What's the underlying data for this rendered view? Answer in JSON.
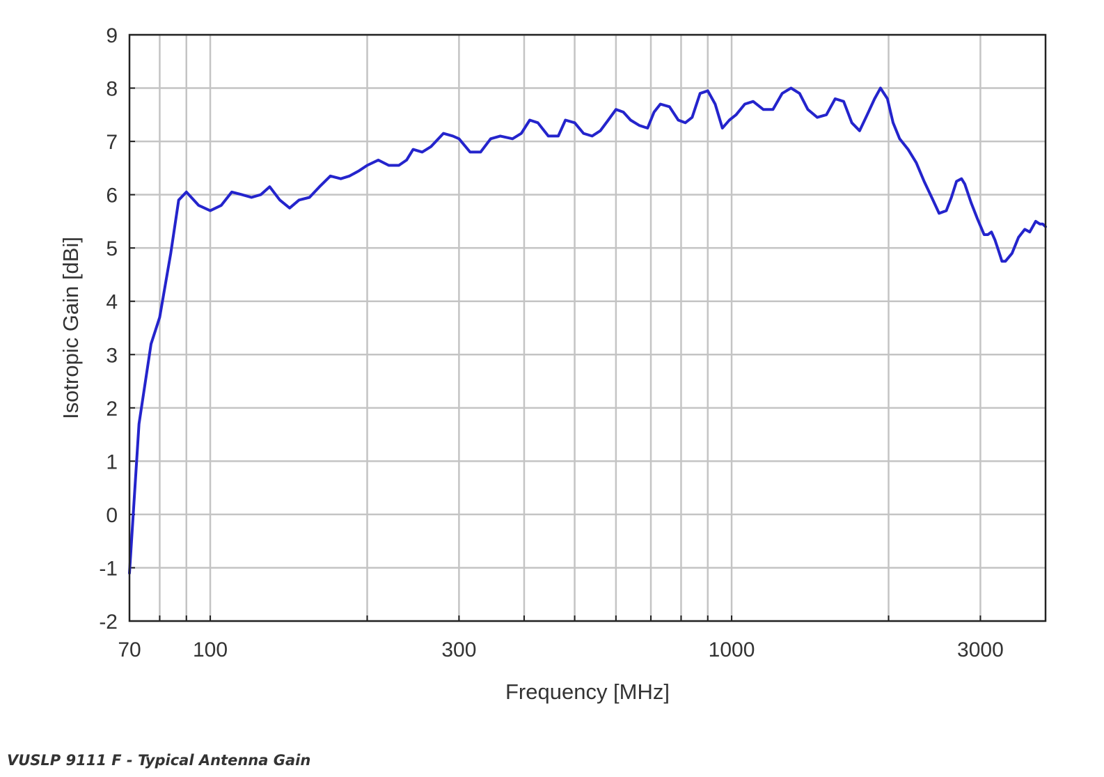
{
  "chart_data": {
    "type": "line",
    "xlabel": "Frequency [MHz]",
    "ylabel": "Isotropic Gain [dBi]",
    "x_scale": "log",
    "xlim": [
      70,
      4000
    ],
    "ylim": [
      -2,
      9
    ],
    "x_ticks": [
      {
        "value": 70,
        "label": "70"
      },
      {
        "value": 100,
        "label": "100"
      },
      {
        "value": 300,
        "label": "300"
      },
      {
        "value": 1000,
        "label": "1000"
      },
      {
        "value": 3000,
        "label": "3000"
      }
    ],
    "y_ticks": [
      {
        "value": -2,
        "label": "-2"
      },
      {
        "value": -1,
        "label": "-1"
      },
      {
        "value": 0,
        "label": "0"
      },
      {
        "value": 1,
        "label": "1"
      },
      {
        "value": 2,
        "label": "2"
      },
      {
        "value": 3,
        "label": "3"
      },
      {
        "value": 4,
        "label": "4"
      },
      {
        "value": 5,
        "label": "5"
      },
      {
        "value": 6,
        "label": "6"
      },
      {
        "value": 7,
        "label": "7"
      },
      {
        "value": 8,
        "label": "8"
      },
      {
        "value": 9,
        "label": "9"
      }
    ],
    "x_gridlines": [
      80,
      90,
      100,
      200,
      300,
      400,
      500,
      600,
      700,
      800,
      900,
      1000,
      2000,
      3000
    ],
    "grid": true,
    "line_color": "#2424cc",
    "series": [
      {
        "x": [
          70,
          73,
          77,
          80,
          84,
          87,
          90,
          95,
          100,
          105,
          110,
          115,
          120,
          125,
          130,
          136,
          142,
          148,
          155,
          162,
          170,
          178,
          185,
          193,
          200,
          210,
          220,
          230,
          238,
          245,
          255,
          265,
          280,
          292,
          300,
          315,
          330,
          345,
          360,
          380,
          395,
          410,
          425,
          445,
          465,
          480,
          500,
          520,
          540,
          560,
          580,
          600,
          620,
          640,
          665,
          690,
          710,
          730,
          760,
          790,
          815,
          840,
          870,
          900,
          930,
          960,
          990,
          1020,
          1060,
          1100,
          1150,
          1200,
          1250,
          1300,
          1350,
          1400,
          1460,
          1520,
          1580,
          1640,
          1700,
          1760,
          1820,
          1880,
          1930,
          1990,
          2040,
          2100,
          2180,
          2260,
          2340,
          2420,
          2500,
          2580,
          2640,
          2700,
          2760,
          2800,
          2880,
          2960,
          3050,
          3100,
          3150,
          3200,
          3250,
          3300,
          3350,
          3450,
          3550,
          3650,
          3730,
          3830,
          3900,
          3950,
          4000
        ],
        "y": [
          -1.1,
          1.7,
          3.2,
          3.7,
          4.9,
          5.9,
          6.05,
          5.8,
          5.7,
          5.8,
          6.05,
          6.0,
          5.95,
          6.0,
          6.15,
          5.9,
          5.75,
          5.9,
          5.95,
          6.15,
          6.35,
          6.3,
          6.35,
          6.45,
          6.55,
          6.65,
          6.55,
          6.55,
          6.65,
          6.85,
          6.8,
          6.9,
          7.15,
          7.1,
          7.05,
          6.8,
          6.8,
          7.05,
          7.1,
          7.05,
          7.15,
          7.4,
          7.35,
          7.1,
          7.1,
          7.4,
          7.35,
          7.15,
          7.1,
          7.2,
          7.4,
          7.6,
          7.55,
          7.4,
          7.3,
          7.25,
          7.55,
          7.7,
          7.65,
          7.4,
          7.35,
          7.45,
          7.9,
          7.95,
          7.7,
          7.25,
          7.4,
          7.5,
          7.7,
          7.75,
          7.6,
          7.6,
          7.9,
          8.0,
          7.9,
          7.6,
          7.45,
          7.5,
          7.8,
          7.75,
          7.35,
          7.2,
          7.5,
          7.8,
          8.0,
          7.8,
          7.35,
          7.05,
          6.85,
          6.6,
          6.25,
          5.95,
          5.65,
          5.7,
          5.95,
          6.25,
          6.3,
          6.2,
          5.85,
          5.55,
          5.25,
          5.25,
          5.3,
          5.15,
          4.95,
          4.75,
          4.75,
          4.9,
          5.2,
          5.35,
          5.3,
          5.5,
          5.45,
          5.45,
          5.4
        ]
      }
    ]
  },
  "caption": "VUSLP 9111 F - Typical Antenna Gain"
}
